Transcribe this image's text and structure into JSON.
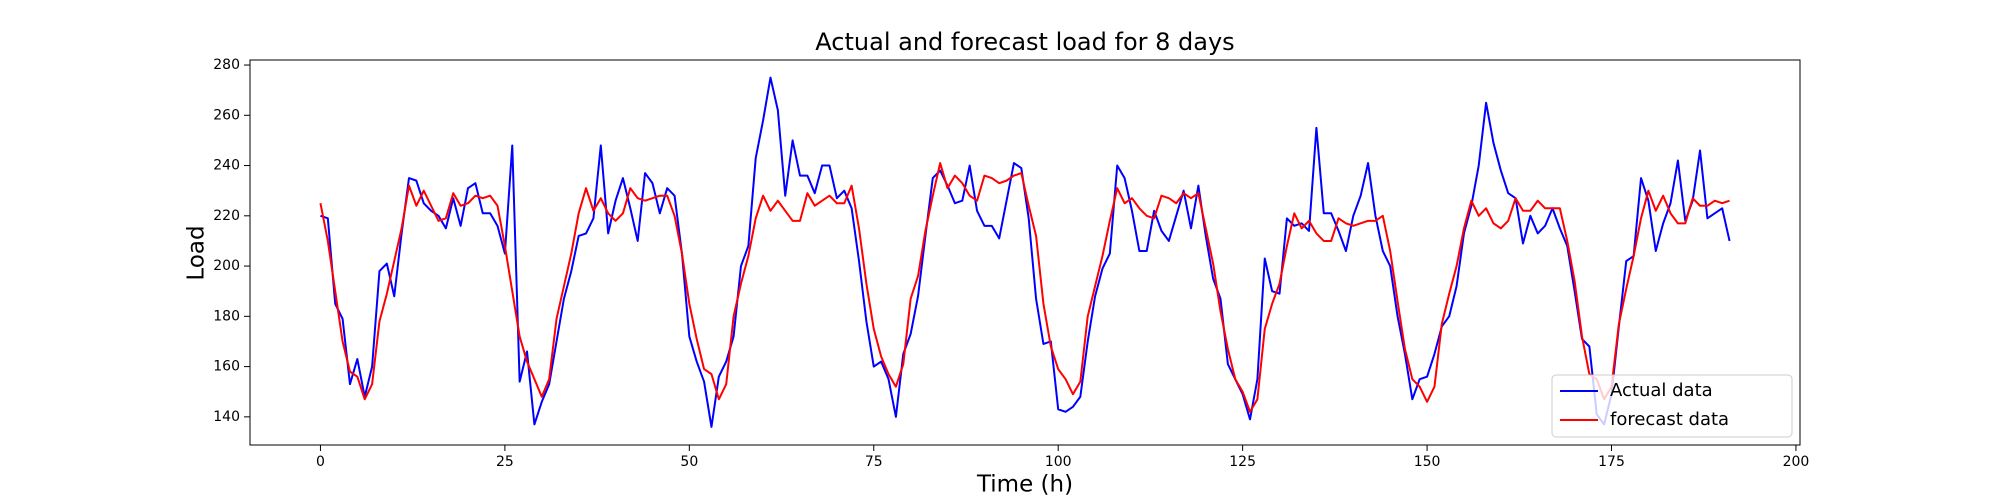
{
  "chart_data": {
    "type": "line",
    "title": "Actual and forecast load for 8 days",
    "x_label": "Time (h)",
    "y_label": "Load",
    "x": [
      0,
      1,
      2,
      3,
      4,
      5,
      6,
      7,
      8,
      9,
      10,
      11,
      12,
      13,
      14,
      15,
      16,
      17,
      18,
      19,
      20,
      21,
      22,
      23,
      24,
      25,
      26,
      27,
      28,
      29,
      30,
      31,
      32,
      33,
      34,
      35,
      36,
      37,
      38,
      39,
      40,
      41,
      42,
      43,
      44,
      45,
      46,
      47,
      48,
      49,
      50,
      51,
      52,
      53,
      54,
      55,
      56,
      57,
      58,
      59,
      60,
      61,
      62,
      63,
      64,
      65,
      66,
      67,
      68,
      69,
      70,
      71,
      72,
      73,
      74,
      75,
      76,
      77,
      78,
      79,
      80,
      81,
      82,
      83,
      84,
      85,
      86,
      87,
      88,
      89,
      90,
      91,
      92,
      93,
      94,
      95,
      96,
      97,
      98,
      99,
      100,
      101,
      102,
      103,
      104,
      105,
      106,
      107,
      108,
      109,
      110,
      111,
      112,
      113,
      114,
      115,
      116,
      117,
      118,
      119,
      120,
      121,
      122,
      123,
      124,
      125,
      126,
      127,
      128,
      129,
      130,
      131,
      132,
      133,
      134,
      135,
      136,
      137,
      138,
      139,
      140,
      141,
      142,
      143,
      144,
      145,
      146,
      147,
      148,
      149,
      150,
      151,
      152,
      153,
      154,
      155,
      156,
      157,
      158,
      159,
      160,
      161,
      162,
      163,
      164,
      165,
      166,
      167,
      168,
      169,
      170,
      171,
      172,
      173,
      174,
      175,
      176,
      177,
      178,
      179,
      180,
      181,
      182,
      183,
      184,
      185,
      186,
      187,
      188,
      189,
      190,
      191
    ],
    "series": [
      {
        "name": "Actual data",
        "color": "#0000ff",
        "values": [
          220,
          219,
          185,
          179,
          153,
          163,
          148,
          160,
          198,
          201,
          188,
          213,
          235,
          234,
          225,
          222,
          220,
          215,
          227,
          216,
          231,
          233,
          221,
          221,
          216,
          205,
          248,
          154,
          166,
          137,
          146,
          153,
          170,
          187,
          198,
          212,
          213,
          219,
          248,
          213,
          226,
          235,
          223,
          210,
          237,
          233,
          221,
          231,
          228,
          205,
          172,
          162,
          154,
          136,
          156,
          162,
          172,
          200,
          208,
          243,
          258,
          275,
          262,
          228,
          250,
          236,
          236,
          229,
          240,
          240,
          227,
          230,
          223,
          202,
          178,
          160,
          162,
          155,
          140,
          165,
          173,
          188,
          212,
          235,
          238,
          232,
          225,
          226,
          240,
          222,
          216,
          216,
          211,
          226,
          241,
          239,
          219,
          187,
          169,
          170,
          143,
          142,
          144,
          148,
          170,
          188,
          199,
          205,
          240,
          235,
          222,
          206,
          206,
          222,
          214,
          210,
          220,
          230,
          215,
          232,
          212,
          195,
          187,
          161,
          155,
          149,
          139,
          155,
          203,
          190,
          189,
          219,
          216,
          217,
          214,
          255,
          221,
          221,
          214,
          206,
          220,
          228,
          241,
          220,
          206,
          200,
          180,
          165,
          147,
          155,
          156,
          165,
          176,
          180,
          192,
          213,
          224,
          240,
          265,
          249,
          238,
          229,
          227,
          209,
          220,
          213,
          216,
          223,
          215,
          208,
          190,
          171,
          168,
          141,
          137,
          149,
          176,
          202,
          204,
          235,
          226,
          206,
          217,
          225,
          242,
          218,
          226,
          246,
          219,
          221,
          223,
          210
        ]
      },
      {
        "name": "forecast data",
        "color": "#ff0000",
        "values": [
          225,
          210,
          190,
          170,
          158,
          156,
          147,
          153,
          178,
          189,
          202,
          215,
          232,
          224,
          230,
          224,
          218,
          219,
          229,
          224,
          225,
          228,
          227,
          228,
          224,
          208,
          190,
          172,
          162,
          155,
          148,
          155,
          179,
          192,
          205,
          221,
          231,
          222,
          227,
          221,
          218,
          221,
          231,
          227,
          226,
          227,
          228,
          228,
          220,
          205,
          185,
          171,
          159,
          157,
          147,
          153,
          180,
          193,
          204,
          219,
          228,
          222,
          226,
          222,
          218,
          218,
          229,
          224,
          226,
          228,
          225,
          225,
          232,
          215,
          193,
          175,
          164,
          157,
          152,
          161,
          187,
          196,
          214,
          228,
          241,
          231,
          236,
          233,
          228,
          226,
          236,
          235,
          233,
          234,
          236,
          237,
          224,
          212,
          185,
          168,
          159,
          155,
          149,
          154,
          180,
          192,
          204,
          218,
          231,
          225,
          227,
          223,
          220,
          219,
          228,
          227,
          225,
          229,
          227,
          229,
          215,
          201,
          182,
          167,
          155,
          150,
          142,
          147,
          175,
          185,
          193,
          208,
          221,
          215,
          218,
          213,
          210,
          210,
          219,
          217,
          216,
          217,
          218,
          218,
          220,
          206,
          186,
          167,
          155,
          152,
          146,
          152,
          177,
          189,
          200,
          215,
          226,
          220,
          223,
          217,
          215,
          218,
          227,
          222,
          222,
          226,
          223,
          223,
          223,
          210,
          194,
          172,
          157,
          155,
          147,
          152,
          177,
          191,
          204,
          219,
          230,
          222,
          228,
          221,
          217,
          217,
          227,
          224,
          224,
          226,
          225,
          226
        ]
      }
    ],
    "xlim": [
      -9.55,
      200.55
    ],
    "ylim": [
      128.8,
      282
    ],
    "xticks": [
      0,
      25,
      50,
      75,
      100,
      125,
      150,
      175,
      200
    ],
    "yticks": [
      140,
      160,
      180,
      200,
      220,
      240,
      260,
      280
    ],
    "grid": false,
    "legend": "lower right"
  }
}
